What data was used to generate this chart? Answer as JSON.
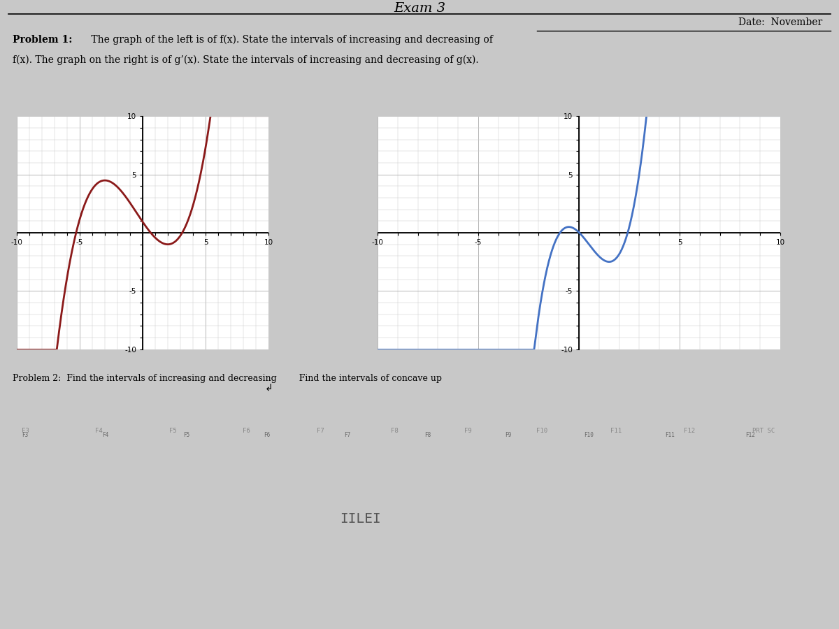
{
  "title": "Exam 3",
  "date_text": "Date:  November",
  "problem1_bold": "Problem 1:",
  "problem1_rest": " The graph of the left is of f(x). State the intervals of increasing and decreasing of",
  "problem1_line2": "f(x). The graph on the right is of g’(x). State the intervals of increasing and decreasing of g(x).",
  "problem2_text": "Problem 2:  Find the intervals of increasing and decreasing        Find the intervals of concave up",
  "left_graph": {
    "color": "#8B1A1A",
    "xlim": [
      -10,
      10
    ],
    "ylim": [
      -10,
      10
    ],
    "xticks": [
      -10,
      -5,
      0,
      5,
      10
    ],
    "yticks": [
      -10,
      -5,
      0,
      5,
      10
    ]
  },
  "right_graph": {
    "color": "#4472C4",
    "xlim": [
      -10,
      10
    ],
    "ylim": [
      -10,
      10
    ],
    "xticks": [
      -10,
      -5,
      0,
      5,
      10
    ],
    "yticks": [
      -10,
      -5,
      0,
      5,
      10
    ]
  },
  "screen_bg": "#c8c8c8",
  "paper_bg": "#e8e8e8",
  "keyboard_bg": "#1a1a1a",
  "keyboard_mid": "#2d2d2d"
}
